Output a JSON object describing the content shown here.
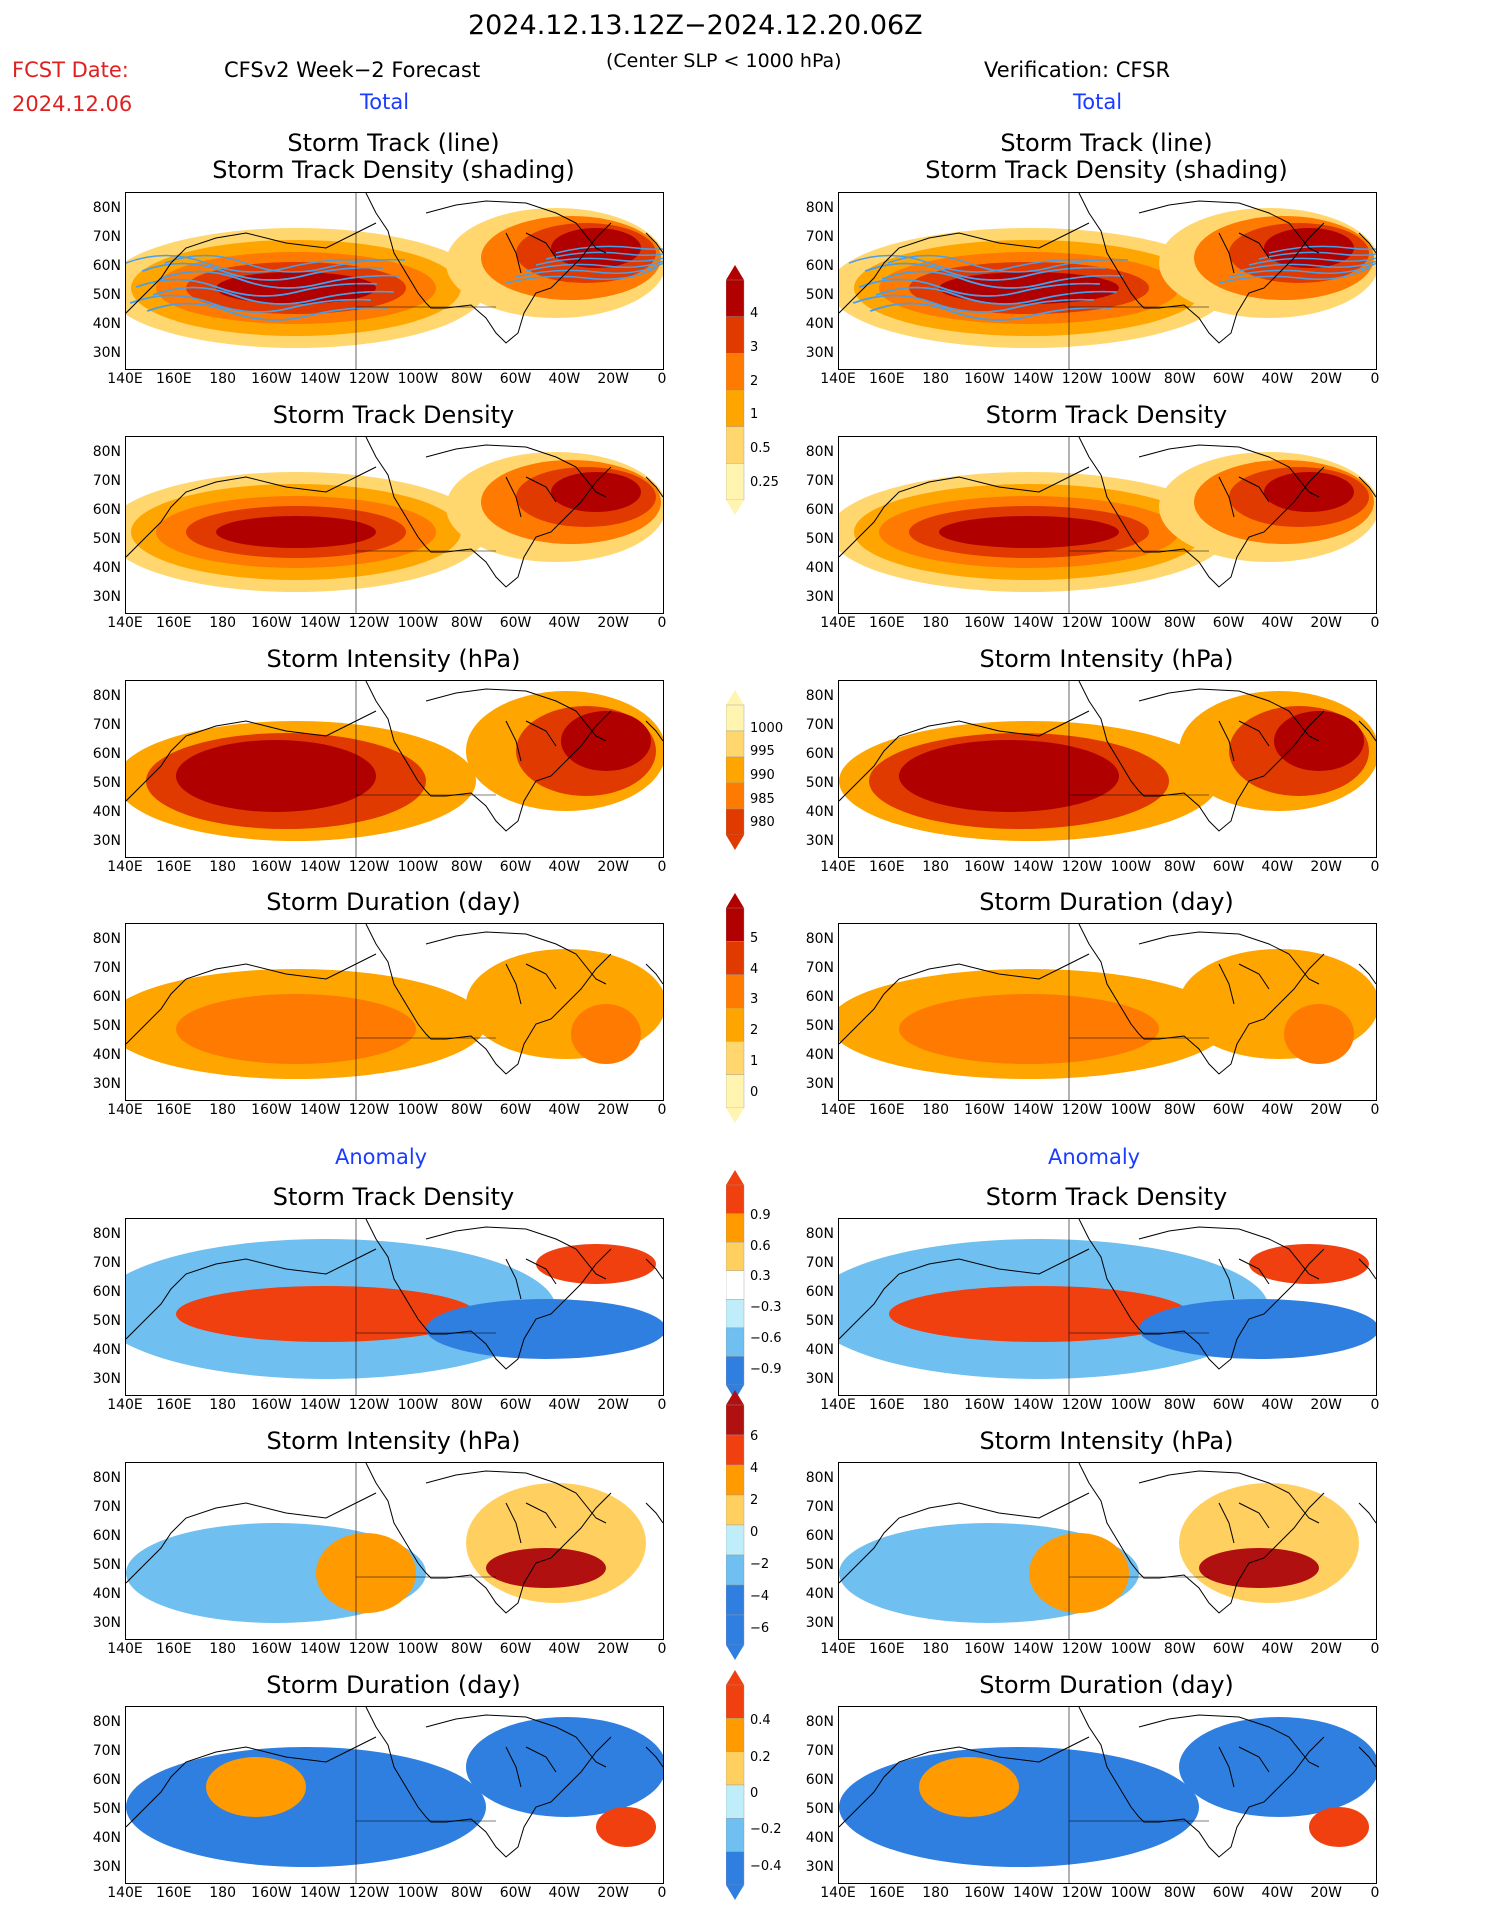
{
  "header": {
    "date_range": "2024.12.13.12Z−2024.12.20.06Z",
    "fcst_label": "FCST Date:",
    "fcst_date": "2024.12.06",
    "forecast_title": "CFSv2 Week−2 Forecast",
    "slp_note": "(Center SLP < 1000 hPa)",
    "verification_title": "Verification: CFSR"
  },
  "sections": {
    "total": "Total",
    "anomaly": "Anomaly"
  },
  "panel_titles": {
    "track_line": "Storm Track (line)",
    "track_density_shading": "Storm Track Density (shading)",
    "track_density": "Storm Track Density",
    "intensity": "Storm Intensity (hPa)",
    "duration": "Storm Duration (day)"
  },
  "axes": {
    "lat_labels": [
      "80N",
      "70N",
      "60N",
      "50N",
      "40N",
      "30N"
    ],
    "lon_labels": [
      "140E",
      "160E",
      "180",
      "160W",
      "140W",
      "120W",
      "100W",
      "80W",
      "60W",
      "40W",
      "20W",
      "0"
    ]
  },
  "colorbars": {
    "density": [
      "4",
      "3",
      "2",
      "1",
      "0.5",
      "0.25"
    ],
    "intensity": [
      "1000",
      "995",
      "990",
      "985",
      "980"
    ],
    "duration": [
      "5",
      "4",
      "3",
      "2",
      "1",
      "0"
    ],
    "density_anom": [
      "0.9",
      "0.6",
      "0.3",
      "−0.3",
      "−0.6",
      "−0.9"
    ],
    "intensity_anom": [
      "6",
      "4",
      "2",
      "0",
      "−2",
      "−4",
      "−6"
    ],
    "duration_anom": [
      "0.4",
      "0.2",
      "0",
      "−0.2",
      "−0.4"
    ]
  },
  "colors": {
    "total_scale": [
      "#fff5b0",
      "#ffd76e",
      "#ffa500",
      "#ff7a00",
      "#e03a00",
      "#b00000"
    ],
    "anom_pos": [
      "#ffd060",
      "#ff9a00",
      "#f04010",
      "#b01010"
    ],
    "anom_neg": [
      "#bfeefa",
      "#6fbff0",
      "#2f7fe0"
    ],
    "track_line": "#4a9ee8"
  }
}
